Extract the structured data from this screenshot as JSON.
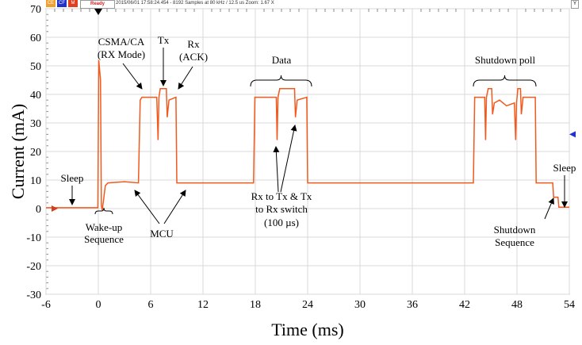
{
  "toolbar": {
    "btn1": "CE",
    "btn2": "CF",
    "btn3": "M",
    "status": "Ready",
    "info": "2015/06/01 17:58:24.454 - 8192 Samples at 80 kHz / 12.5 us Zoom: 1.67 X",
    "y_button": "Y"
  },
  "chart_data": {
    "type": "line",
    "xlabel": "Time (ms)",
    "ylabel": "Current (mA)",
    "xlim": [
      -6,
      54
    ],
    "ylim": [
      -30,
      70
    ],
    "xticks": [
      -6,
      0,
      6,
      12,
      18,
      24,
      30,
      36,
      42,
      48,
      54
    ],
    "yticks": [
      -30,
      -20,
      -10,
      0,
      10,
      20,
      30,
      40,
      50,
      60,
      70
    ],
    "grid": true,
    "series_color": "#f05a1e",
    "series": [
      {
        "points": [
          [
            -6,
            0.3
          ],
          [
            -0.05,
            0.3
          ],
          [
            0.05,
            52
          ],
          [
            0.25,
            45
          ],
          [
            0.35,
            1
          ],
          [
            0.45,
            -0.5
          ],
          [
            0.6,
            3
          ],
          [
            0.8,
            8
          ],
          [
            1.1,
            9
          ],
          [
            3,
            9.4
          ],
          [
            4.6,
            9
          ],
          [
            4.8,
            38
          ],
          [
            5,
            39
          ],
          [
            6.7,
            39
          ],
          [
            6.85,
            24
          ],
          [
            6.95,
            39
          ],
          [
            7.1,
            42
          ],
          [
            7.8,
            42
          ],
          [
            7.9,
            32
          ],
          [
            8.1,
            38
          ],
          [
            8.9,
            39
          ],
          [
            9,
            9
          ],
          [
            17.8,
            9
          ],
          [
            17.95,
            39
          ],
          [
            20.4,
            39
          ],
          [
            20.5,
            24
          ],
          [
            20.6,
            39
          ],
          [
            20.8,
            42
          ],
          [
            22.5,
            42
          ],
          [
            22.6,
            32
          ],
          [
            22.8,
            38
          ],
          [
            23.9,
            39
          ],
          [
            24,
            9
          ],
          [
            43,
            9
          ],
          [
            43.15,
            39
          ],
          [
            44.3,
            39
          ],
          [
            44.4,
            24
          ],
          [
            44.5,
            39
          ],
          [
            44.7,
            42
          ],
          [
            45.1,
            42
          ],
          [
            45.2,
            33
          ],
          [
            45.4,
            37
          ],
          [
            46,
            38
          ],
          [
            46.8,
            36
          ],
          [
            47.7,
            37
          ],
          [
            47.85,
            24
          ],
          [
            47.95,
            37
          ],
          [
            48.1,
            42
          ],
          [
            48.4,
            42
          ],
          [
            48.5,
            33
          ],
          [
            48.7,
            39
          ],
          [
            50.1,
            39
          ],
          [
            50.2,
            9
          ],
          [
            52.1,
            9
          ],
          [
            52.2,
            4
          ],
          [
            52.7,
            4
          ],
          [
            52.8,
            0.5
          ],
          [
            54,
            0.5
          ]
        ]
      }
    ],
    "markers": {
      "trigger_time": 0,
      "left_level": 0,
      "right_level": 26
    },
    "annotations": {
      "csma": "CSMA/CA",
      "csma2": "(RX Mode)",
      "tx": "Tx",
      "rx": "Rx",
      "rx2": "(ACK)",
      "data": "Data",
      "shutdown_poll": "Shutdown poll",
      "sleep1": "Sleep",
      "wake1": "Wake-up",
      "wake2": "Sequence",
      "mcu": "MCU",
      "switch1": "Rx to Tx & Tx",
      "switch2": "to Rx switch",
      "switch3": "(100 µs)",
      "shut1": "Shutdown",
      "shut2": "Sequence",
      "sleep2": "Sleep"
    }
  }
}
